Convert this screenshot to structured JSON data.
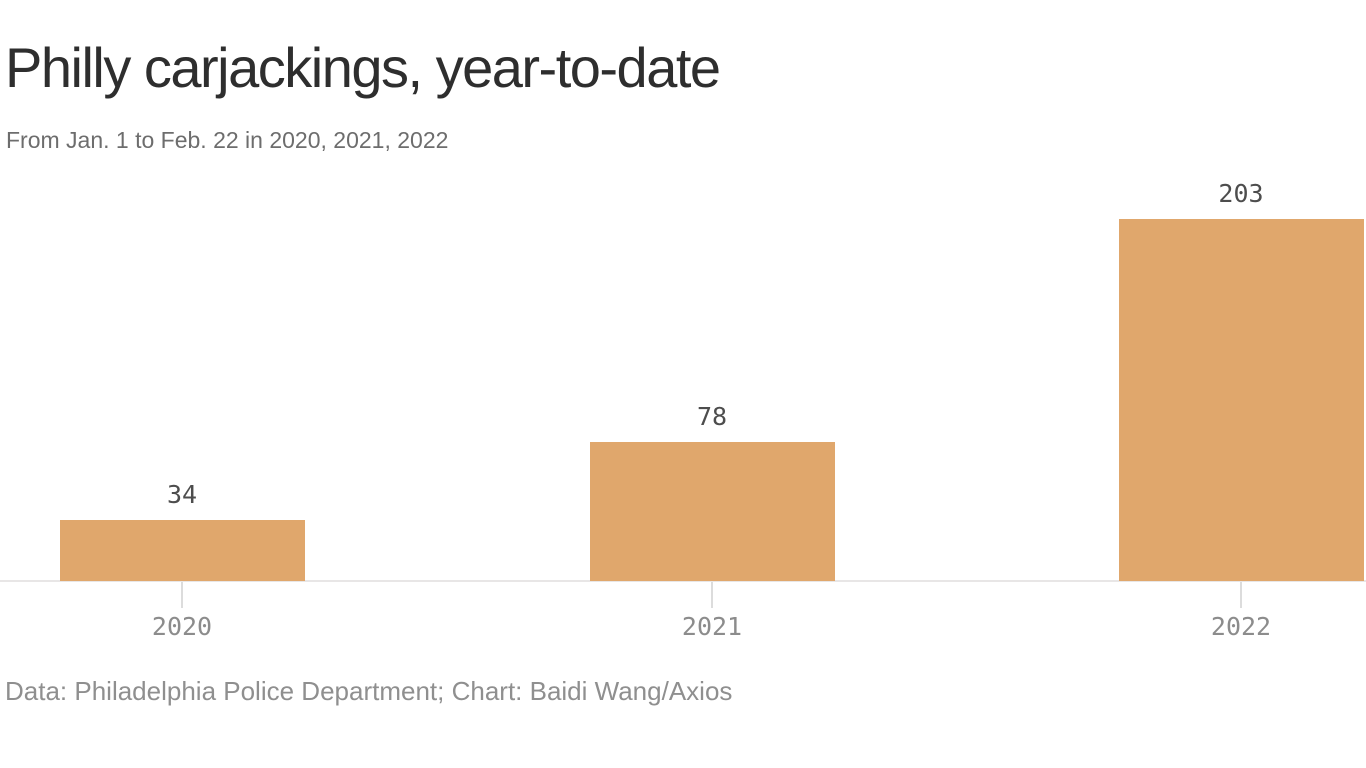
{
  "header": {
    "title": "Philly carjackings, year-to-date",
    "subtitle": "From Jan. 1 to Feb. 22 in 2020, 2021, 2022"
  },
  "footer": {
    "source": "Data: Philadelphia Police Department; Chart: Baidi Wang/Axios"
  },
  "chart_data": {
    "type": "bar",
    "categories": [
      "2020",
      "2021",
      "2022"
    ],
    "values": [
      34,
      78,
      203
    ],
    "value_labels": [
      "34",
      "78",
      "203"
    ],
    "title": "Philly carjackings, year-to-date",
    "subtitle": "From Jan. 1 to Feb. 22 in 2020, 2021, 2022",
    "source": "Data: Philadelphia Police Department; Chart: Baidi Wang/Axios",
    "xlabel": "",
    "ylabel": "",
    "ylim": [
      0,
      203
    ],
    "grid": false,
    "legend": false,
    "colors": {
      "bar": "#e0a76c",
      "value_label": "#4d4d4d",
      "category_label": "#8c8c8c",
      "axis_line": "#e8e6e6",
      "tick": "#dcdcdc",
      "title": "#2e2e2e",
      "subtitle": "#6d6d6d",
      "source": "#8f8f8f"
    }
  }
}
